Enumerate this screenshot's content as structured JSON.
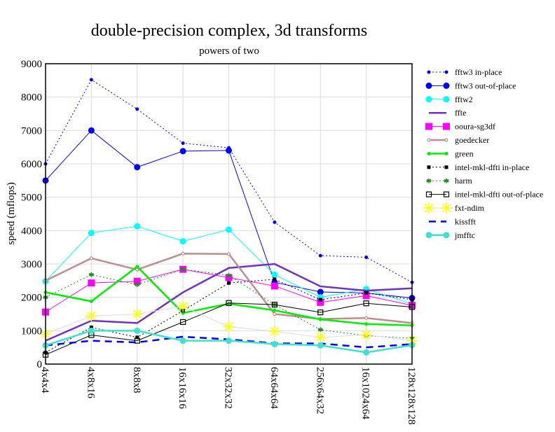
{
  "chart_data": {
    "type": "line",
    "title": "double-precision complex, 3d transforms",
    "subtitle": "powers of two",
    "xlabel": "",
    "ylabel": "speed (mflops)",
    "ylim": [
      0,
      9000
    ],
    "yticks": [
      "0",
      "1000",
      "2000",
      "3000",
      "4000",
      "5000",
      "6000",
      "7000",
      "8000",
      "9000"
    ],
    "grid": true,
    "legend_position": "right",
    "categories": [
      "4x4x4",
      "4x8x16",
      "8x8x8",
      "16x16x16",
      "32x32x32",
      "64x64x64",
      "256x64x32",
      "16x1024x64",
      "128x128x128"
    ],
    "series": [
      {
        "name": "fftw3 in-place",
        "color": "#0000ff",
        "dash": "2,3",
        "width": 1,
        "marker": "dot",
        "values": [
          6000,
          8520,
          7640,
          6620,
          6480,
          4250,
          3250,
          3200,
          2450
        ]
      },
      {
        "name": "fftw3 out-of-place",
        "color": "#0000ff",
        "dash": "",
        "width": 1,
        "marker": "bigdot",
        "values": [
          5500,
          7000,
          5900,
          6380,
          6400,
          2450,
          2160,
          2130,
          1980
        ]
      },
      {
        "name": "fftw2",
        "color": "#00ffff",
        "dash": "",
        "width": 1,
        "marker": "bigdot",
        "values": [
          2480,
          3930,
          4130,
          3680,
          4030,
          2680,
          2000,
          2250,
          1800
        ]
      },
      {
        "name": "ffte",
        "color": "#7030c0",
        "dash": "",
        "width": 2.5,
        "marker": "none",
        "values": [
          700,
          1300,
          1230,
          2150,
          2880,
          3000,
          2330,
          2200,
          2270
        ]
      },
      {
        "name": "ooura-sg3df",
        "color": "#ff00ff",
        "dash": "",
        "width": 1,
        "marker": "square",
        "values": [
          1560,
          2430,
          2480,
          2840,
          2590,
          2340,
          1850,
          2050,
          1760
        ]
      },
      {
        "name": "goedecker",
        "color": "#bc8f8f",
        "dash": "",
        "width": 2.5,
        "marker": "smallcircle",
        "values": [
          2500,
          3170,
          2830,
          3310,
          3300,
          1500,
          1350,
          1380,
          1230
        ]
      },
      {
        "name": "green",
        "color": "#00ee00",
        "dash": "",
        "width": 2.5,
        "marker": "dot",
        "values": [
          2150,
          1880,
          2920,
          1530,
          1810,
          1610,
          1340,
          1200,
          1160
        ]
      },
      {
        "name": "intel-mkl-dfti in-place",
        "color": "#000000",
        "dash": "2,3",
        "width": 1,
        "marker": "smallsquare",
        "values": [
          350,
          1100,
          800,
          1600,
          2430,
          2540,
          1930,
          2130,
          1930
        ]
      },
      {
        "name": "harm",
        "color": "#228b22",
        "dash": "2,3",
        "width": 1,
        "marker": "star",
        "values": [
          2000,
          2680,
          2380,
          2840,
          2660,
          1780,
          1030,
          850,
          770
        ]
      },
      {
        "name": "intel-mkl-dfti out-of-place",
        "color": "#000000",
        "dash": "",
        "width": 1,
        "marker": "opensquare",
        "values": [
          280,
          870,
          700,
          1260,
          1830,
          1780,
          1550,
          1820,
          1710
        ]
      },
      {
        "name": "fxt-ndim",
        "color": "#dddddd",
        "markercolor": "#ffff00",
        "dash": "",
        "width": 1,
        "marker": "asterisk",
        "values": [
          900,
          1440,
          1500,
          1730,
          1120,
          980,
          800,
          880,
          700
        ]
      },
      {
        "name": "kissfft",
        "color": "#0000ff",
        "dash": "10,7",
        "width": 2.5,
        "marker": "none",
        "values": [
          560,
          700,
          650,
          820,
          740,
          620,
          620,
          500,
          600
        ]
      },
      {
        "name": "jmfftc",
        "color": "#40e0d0",
        "dash": "",
        "width": 2.5,
        "marker": "bigdot",
        "values": [
          560,
          1000,
          1000,
          700,
          700,
          600,
          560,
          350,
          570
        ]
      }
    ]
  }
}
